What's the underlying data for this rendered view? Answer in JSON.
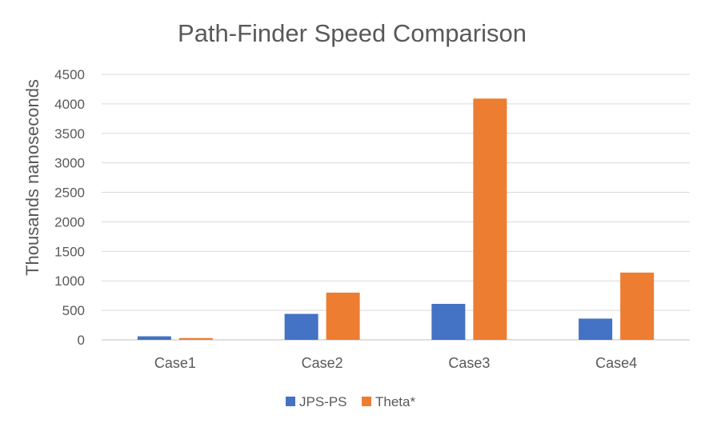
{
  "chart_data": {
    "type": "bar",
    "title": "Path-Finder Speed Comparison",
    "xlabel": "",
    "ylabel": "Thousands nanoseconds",
    "categories": [
      "Case1",
      "Case2",
      "Case3",
      "Case4"
    ],
    "series": [
      {
        "name": "JPS-PS",
        "color": "#4472C4",
        "values": [
          60,
          440,
          610,
          360
        ]
      },
      {
        "name": "Theta*",
        "color": "#ED7D31",
        "values": [
          30,
          800,
          4090,
          1140
        ]
      }
    ],
    "ylim": [
      0,
      4500
    ],
    "yticks": [
      "0",
      "500",
      "1000",
      "1500",
      "2000",
      "2500",
      "3000",
      "3500",
      "4000",
      "4500"
    ],
    "grid": true,
    "legend_position": "bottom"
  }
}
